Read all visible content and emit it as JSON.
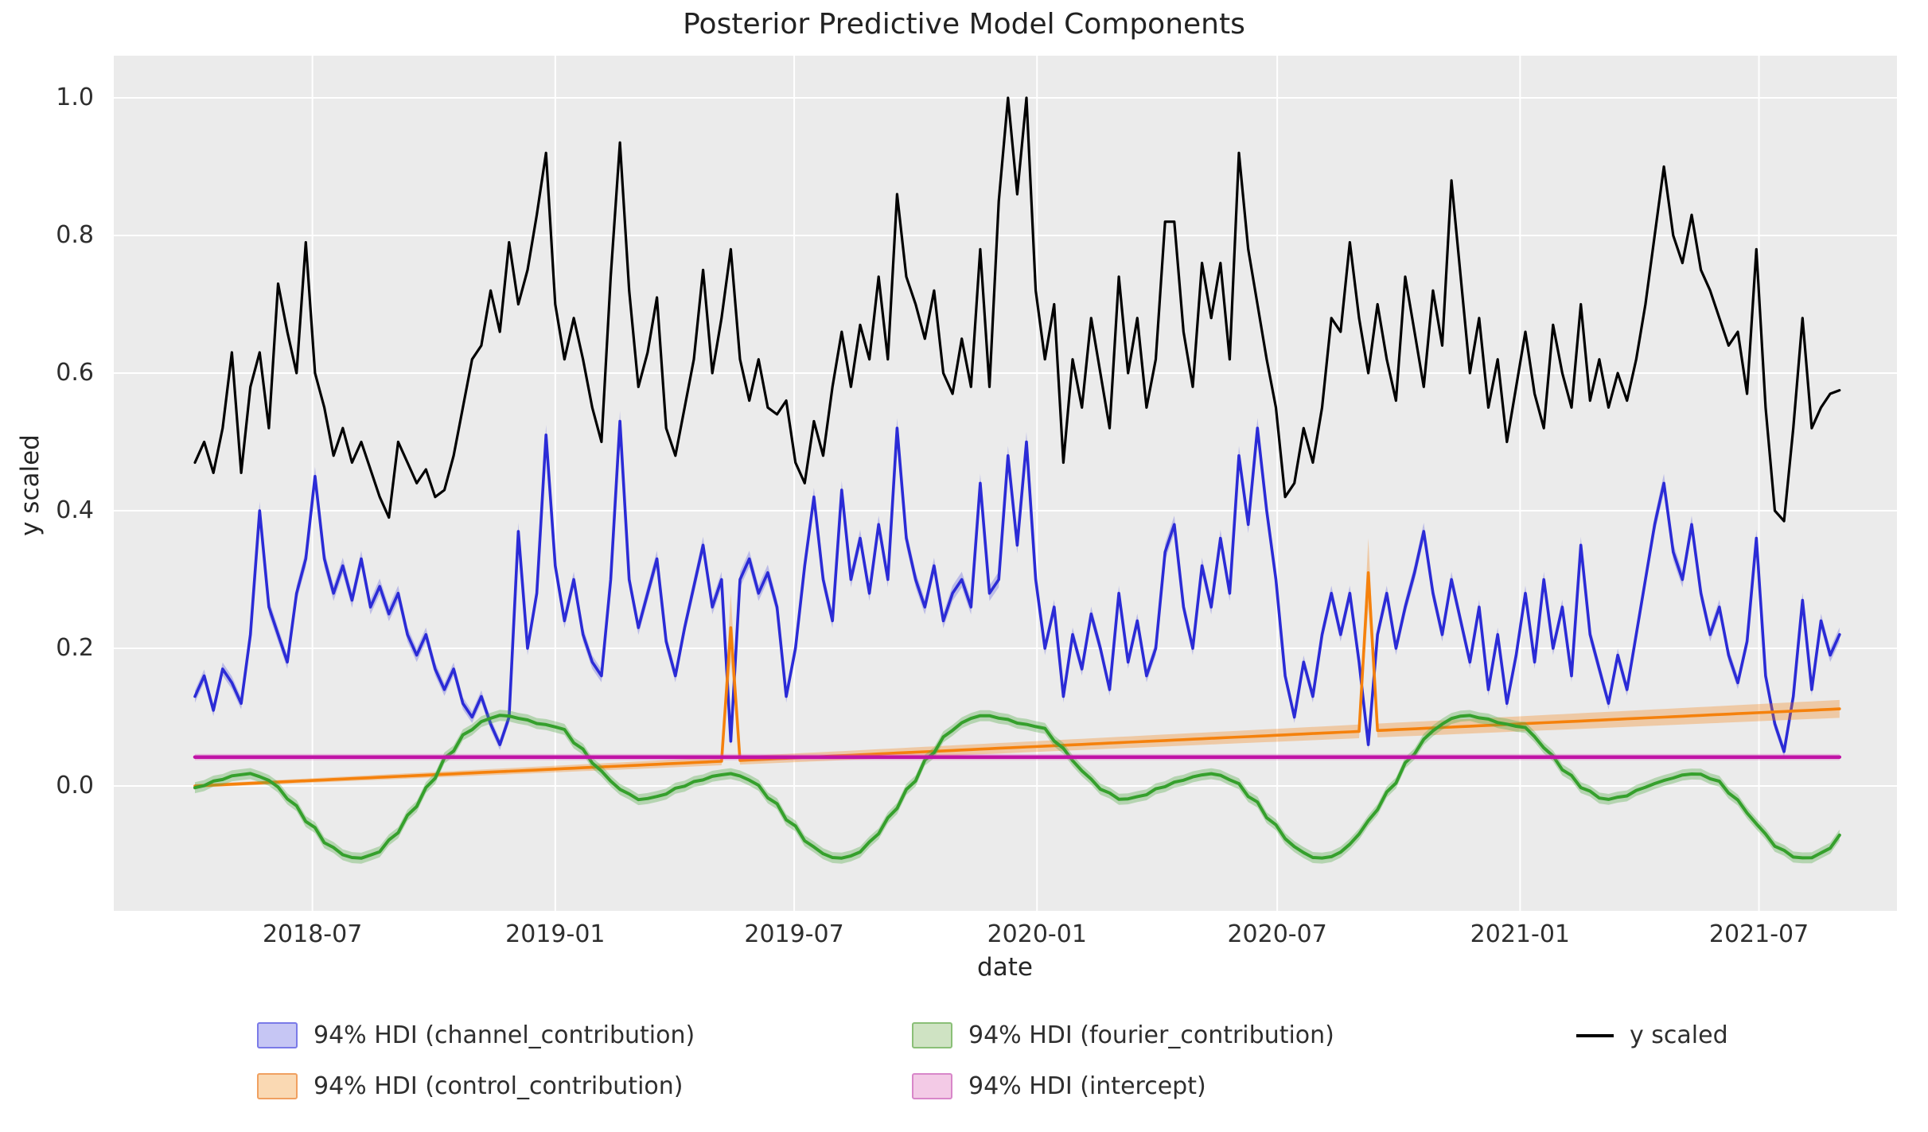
{
  "chart_data": {
    "type": "line",
    "title": "Posterior Predictive Model Components",
    "xlabel": "date",
    "ylabel": "y scaled",
    "grid": true,
    "background": "#ebebeb",
    "x_meta": {
      "start_date": "2018-04-03",
      "step_days": 7,
      "n_points": 179
    },
    "xtick_labels": [
      "2018-07",
      "2019-01",
      "2019-07",
      "2020-01",
      "2020-07",
      "2021-01",
      "2021-07"
    ],
    "xtick_dates": [
      "2018-07-01",
      "2019-01-01",
      "2019-07-01",
      "2020-01-01",
      "2020-07-01",
      "2021-01-01",
      "2021-07-01"
    ],
    "ytick_labels": [
      "0.0",
      "0.2",
      "0.4",
      "0.6",
      "0.8",
      "1.0"
    ],
    "ytick_values": [
      0.0,
      0.2,
      0.4,
      0.6,
      0.8,
      1.0
    ],
    "ylim_shown": [
      -0.18,
      1.06
    ],
    "series": [
      {
        "name": "y scaled",
        "kind": "line",
        "color": "#000000",
        "values": [
          0.47,
          0.5,
          0.455,
          0.52,
          0.63,
          0.455,
          0.58,
          0.63,
          0.52,
          0.73,
          0.66,
          0.6,
          0.79,
          0.6,
          0.55,
          0.48,
          0.52,
          0.47,
          0.5,
          0.46,
          0.42,
          0.39,
          0.5,
          0.47,
          0.44,
          0.46,
          0.42,
          0.43,
          0.48,
          0.55,
          0.62,
          0.64,
          0.72,
          0.66,
          0.79,
          0.7,
          0.75,
          0.83,
          0.92,
          0.7,
          0.62,
          0.68,
          0.62,
          0.55,
          0.5,
          0.74,
          0.935,
          0.72,
          0.58,
          0.63,
          0.71,
          0.52,
          0.48,
          0.55,
          0.62,
          0.75,
          0.6,
          0.68,
          0.78,
          0.62,
          0.56,
          0.62,
          0.55,
          0.54,
          0.56,
          0.47,
          0.44,
          0.53,
          0.48,
          0.58,
          0.66,
          0.58,
          0.67,
          0.62,
          0.74,
          0.62,
          0.86,
          0.74,
          0.7,
          0.65,
          0.72,
          0.6,
          0.57,
          0.65,
          0.58,
          0.78,
          0.58,
          0.85,
          1.0,
          0.86,
          1.0,
          0.72,
          0.62,
          0.7,
          0.47,
          0.62,
          0.55,
          0.68,
          0.6,
          0.52,
          0.74,
          0.6,
          0.68,
          0.55,
          0.62,
          0.82,
          0.82,
          0.66,
          0.58,
          0.76,
          0.68,
          0.76,
          0.62,
          0.92,
          0.78,
          0.7,
          0.62,
          0.55,
          0.42,
          0.44,
          0.52,
          0.47,
          0.55,
          0.68,
          0.66,
          0.79,
          0.68,
          0.6,
          0.7,
          0.62,
          0.56,
          0.74,
          0.66,
          0.58,
          0.72,
          0.64,
          0.88,
          0.74,
          0.6,
          0.68,
          0.55,
          0.62,
          0.5,
          0.58,
          0.66,
          0.57,
          0.52,
          0.67,
          0.6,
          0.55,
          0.7,
          0.56,
          0.62,
          0.55,
          0.6,
          0.56,
          0.62,
          0.7,
          0.8,
          0.9,
          0.8,
          0.76,
          0.83,
          0.75,
          0.72,
          0.68,
          0.64,
          0.66,
          0.57,
          0.78,
          0.55,
          0.4,
          0.385,
          0.52,
          0.68,
          0.52,
          0.55,
          0.57,
          0.575
        ]
      },
      {
        "name": "94% HDI (channel_contribution)",
        "kind": "band+line",
        "color": "#2b2bd6",
        "band_color": "rgba(70,70,220,0.28)",
        "hdi_half": {
          "base": 0.007,
          "mean_slope": 0.015
        },
        "values": [
          0.13,
          0.16,
          0.11,
          0.17,
          0.15,
          0.12,
          0.22,
          0.4,
          0.26,
          0.22,
          0.18,
          0.28,
          0.33,
          0.45,
          0.33,
          0.28,
          0.32,
          0.27,
          0.33,
          0.26,
          0.29,
          0.25,
          0.28,
          0.22,
          0.19,
          0.22,
          0.17,
          0.14,
          0.17,
          0.12,
          0.1,
          0.13,
          0.09,
          0.06,
          0.1,
          0.37,
          0.2,
          0.28,
          0.51,
          0.32,
          0.24,
          0.3,
          0.22,
          0.18,
          0.16,
          0.3,
          0.53,
          0.3,
          0.23,
          0.28,
          0.33,
          0.21,
          0.16,
          0.23,
          0.29,
          0.35,
          0.26,
          0.3,
          0.065,
          0.3,
          0.33,
          0.28,
          0.31,
          0.26,
          0.13,
          0.2,
          0.32,
          0.42,
          0.3,
          0.24,
          0.43,
          0.3,
          0.36,
          0.28,
          0.38,
          0.3,
          0.52,
          0.36,
          0.3,
          0.26,
          0.32,
          0.24,
          0.28,
          0.3,
          0.26,
          0.44,
          0.28,
          0.3,
          0.48,
          0.35,
          0.5,
          0.3,
          0.2,
          0.26,
          0.13,
          0.22,
          0.17,
          0.25,
          0.2,
          0.14,
          0.28,
          0.18,
          0.24,
          0.16,
          0.2,
          0.34,
          0.38,
          0.26,
          0.2,
          0.32,
          0.26,
          0.36,
          0.28,
          0.48,
          0.38,
          0.52,
          0.4,
          0.3,
          0.16,
          0.1,
          0.18,
          0.13,
          0.22,
          0.28,
          0.22,
          0.28,
          0.18,
          0.06,
          0.22,
          0.28,
          0.2,
          0.26,
          0.31,
          0.37,
          0.28,
          0.22,
          0.3,
          0.24,
          0.18,
          0.26,
          0.14,
          0.22,
          0.12,
          0.19,
          0.28,
          0.18,
          0.3,
          0.2,
          0.26,
          0.16,
          0.35,
          0.22,
          0.17,
          0.12,
          0.19,
          0.14,
          0.22,
          0.3,
          0.38,
          0.44,
          0.34,
          0.3,
          0.38,
          0.28,
          0.22,
          0.26,
          0.19,
          0.15,
          0.21,
          0.36,
          0.16,
          0.09,
          0.05,
          0.13,
          0.27,
          0.14,
          0.24,
          0.19,
          0.22
        ]
      },
      {
        "name": "94% HDI (control_contribution)",
        "kind": "band+line",
        "color": "#f5810c",
        "band_color": "rgba(245,130,20,0.32)",
        "trend": {
          "start": 0.0,
          "end": 0.112
        },
        "hdi_half": {
          "base": 0.0025,
          "end_extra": 0.0105,
          "spike_half": 0.05
        },
        "spikes": [
          {
            "i": 58,
            "value": 0.23
          },
          {
            "i": 127,
            "value": 0.31
          }
        ]
      },
      {
        "name": "94% HDI (fourier_contribution)",
        "kind": "band+line",
        "color": "#35a02c",
        "band_color": "rgba(80,170,70,0.35)",
        "hdi_half_const": 0.008,
        "seasonal_anchors_doy": [
          [
            5,
            0.085
          ],
          [
            20,
            0.055
          ],
          [
            35,
            0.022
          ],
          [
            50,
            -0.005
          ],
          [
            65,
            -0.02
          ],
          [
            80,
            -0.015
          ],
          [
            95,
            -0.002
          ],
          [
            110,
            0.008
          ],
          [
            125,
            0.016
          ],
          [
            135,
            0.018
          ],
          [
            150,
            0.008
          ],
          [
            165,
            -0.02
          ],
          [
            180,
            -0.055
          ],
          [
            195,
            -0.088
          ],
          [
            210,
            -0.104
          ],
          [
            220,
            -0.105
          ],
          [
            232,
            -0.096
          ],
          [
            245,
            -0.07
          ],
          [
            258,
            -0.035
          ],
          [
            270,
            0.0
          ],
          [
            285,
            0.045
          ],
          [
            300,
            0.08
          ],
          [
            315,
            0.098
          ],
          [
            326,
            0.103
          ],
          [
            340,
            0.098
          ],
          [
            355,
            0.09
          ]
        ]
      },
      {
        "name": "94% HDI (intercept)",
        "kind": "band+line",
        "color": "#c013a6",
        "band_color": "rgba(220,80,190,0.30)",
        "value": 0.042,
        "hdi_half_const": 0.0045
      }
    ]
  },
  "legend": {
    "items": [
      {
        "label": "94% HDI (channel_contribution)",
        "swatch": "patch",
        "fill": "#c6c6f4",
        "edge": "#7a7ae8"
      },
      {
        "label": "94% HDI (control_contribution)",
        "swatch": "patch",
        "fill": "#fad9b3",
        "edge": "#f0a060"
      },
      {
        "label": "94% HDI (fourier_contribution)",
        "swatch": "patch",
        "fill": "#cfe3c3",
        "edge": "#8abf77"
      },
      {
        "label": "94% HDI (intercept)",
        "swatch": "patch",
        "fill": "#f3cae6",
        "edge": "#d886c9"
      },
      {
        "label": "y scaled",
        "swatch": "line",
        "color": "#000000"
      }
    ]
  }
}
